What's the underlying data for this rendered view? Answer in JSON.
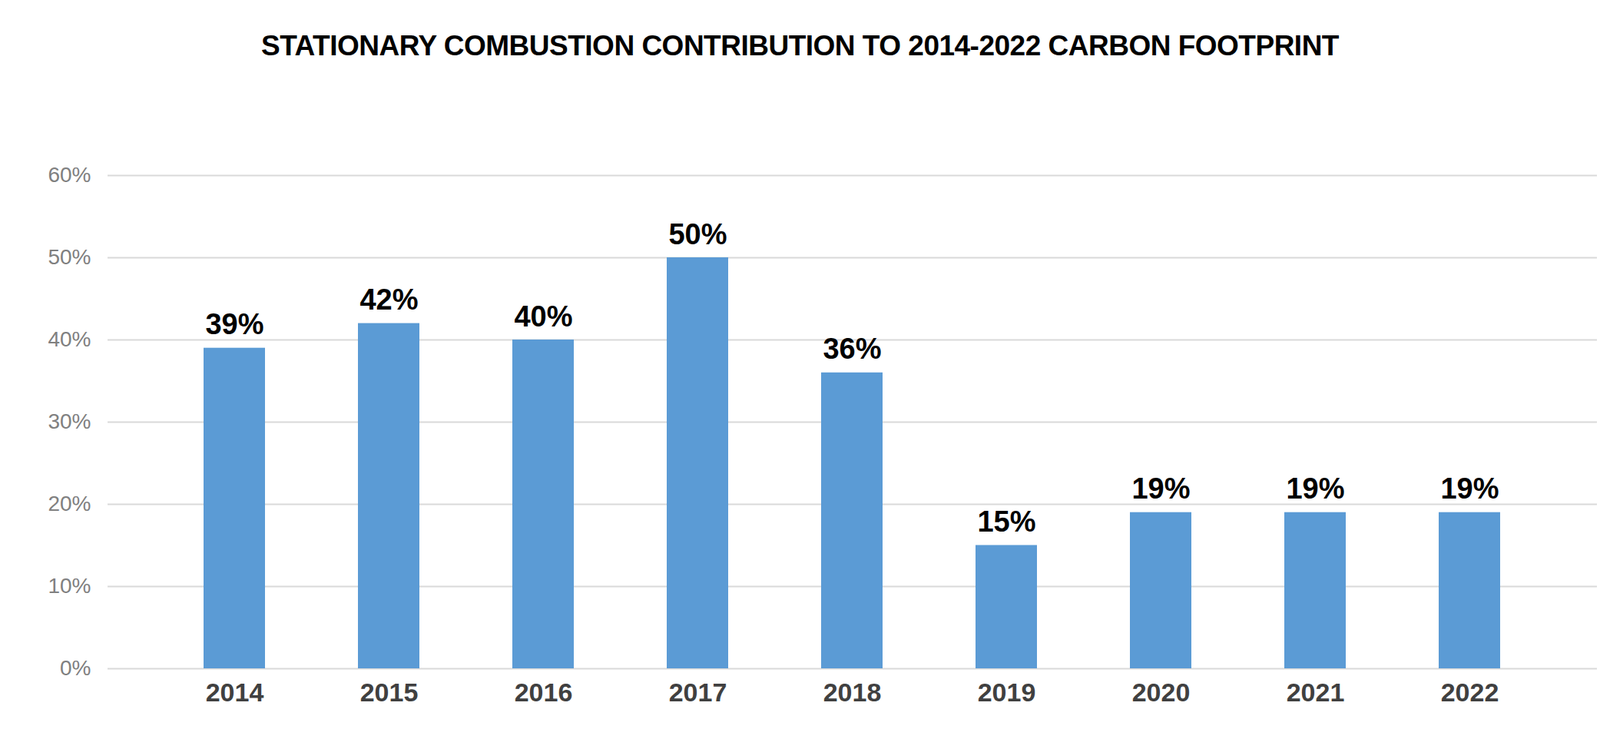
{
  "chart_data": {
    "type": "bar",
    "title": "STATIONARY COMBUSTION CONTRIBUTION TO 2014-2022 CARBON FOOTPRINT",
    "categories": [
      "2014",
      "2015",
      "2016",
      "2017",
      "2018",
      "2019",
      "2020",
      "2021",
      "2022"
    ],
    "values": [
      39,
      42,
      40,
      50,
      36,
      15,
      19,
      19,
      19
    ],
    "value_labels": [
      "39%",
      "42%",
      "40%",
      "50%",
      "36%",
      "15%",
      "19%",
      "19%",
      "19%"
    ],
    "color": "#5b9bd5",
    "ylim": [
      0,
      60
    ],
    "yticks": [
      {
        "value": 0,
        "label": "0%"
      },
      {
        "value": 10,
        "label": "10%"
      },
      {
        "value": 20,
        "label": "20%"
      },
      {
        "value": 30,
        "label": "30%"
      },
      {
        "value": 40,
        "label": "40%"
      },
      {
        "value": 50,
        "label": "50%"
      },
      {
        "value": 60,
        "label": "60%"
      }
    ],
    "grid": true,
    "data_labels": true
  }
}
